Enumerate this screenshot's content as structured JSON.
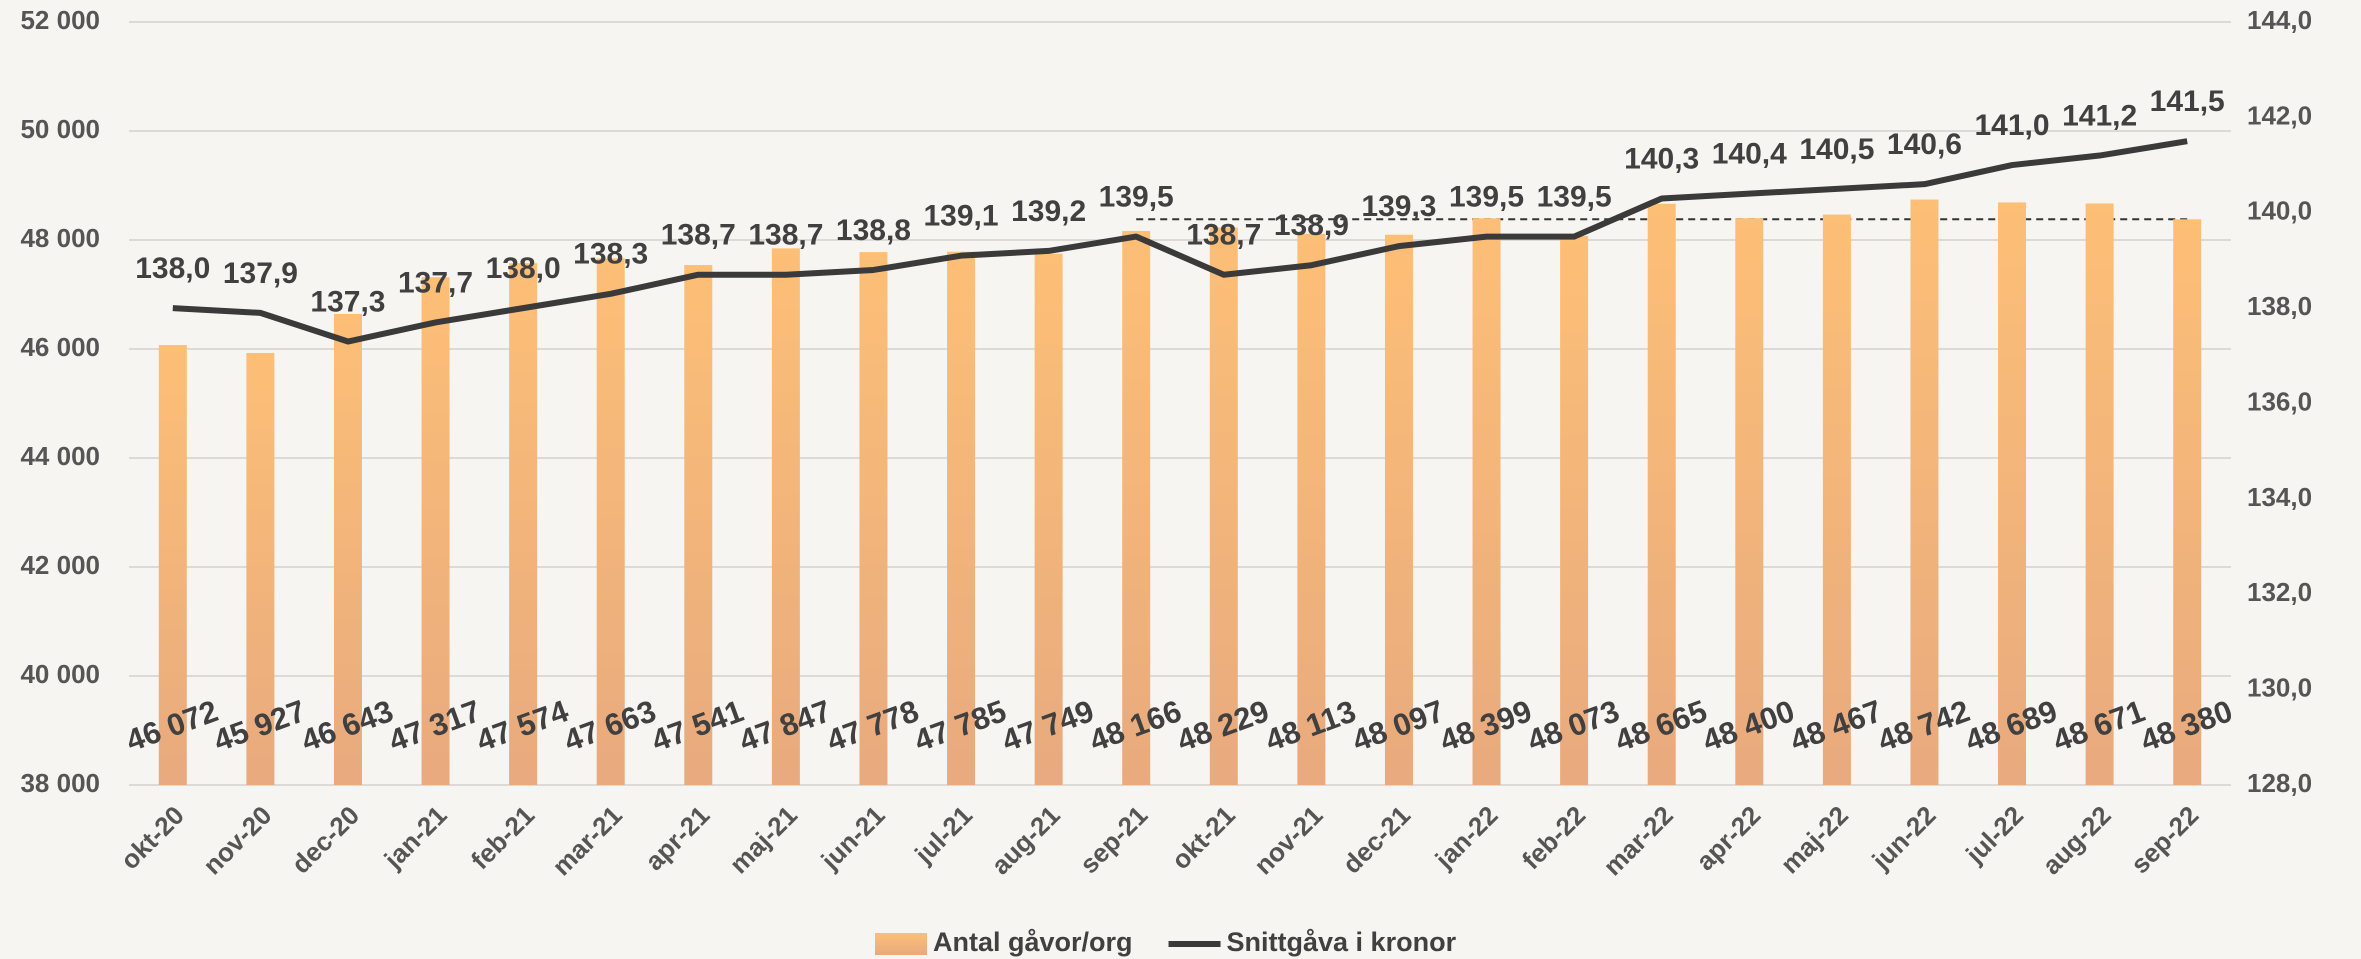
{
  "chart_data": {
    "type": "bar-line",
    "categories": [
      "okt-20",
      "nov-20",
      "dec-20",
      "jan-21",
      "feb-21",
      "mar-21",
      "apr-21",
      "maj-21",
      "jun-21",
      "jul-21",
      "aug-21",
      "sep-21",
      "okt-21",
      "nov-21",
      "dec-21",
      "jan-22",
      "feb-22",
      "mar-22",
      "apr-22",
      "maj-22",
      "jun-22",
      "jul-22",
      "aug-22",
      "sep-22"
    ],
    "series": [
      {
        "name": "Antal gåvor/org",
        "type": "bar",
        "color": "#fbbd78",
        "values": [
          46072,
          45927,
          46643,
          47317,
          47574,
          47663,
          47541,
          47847,
          47778,
          47785,
          47749,
          48166,
          48229,
          48113,
          48097,
          48399,
          48073,
          48665,
          48400,
          48467,
          48742,
          48689,
          48671,
          48380
        ],
        "value_labels": [
          "46 072",
          "45 927",
          "46 643",
          "47 317",
          "47 574",
          "47 663",
          "47 541",
          "47 847",
          "47 778",
          "47 785",
          "47 749",
          "48 166",
          "48 229",
          "48 113",
          "48 097",
          "48 399",
          "48 073",
          "48 665",
          "48 400",
          "48 467",
          "48 742",
          "48 689",
          "48 671",
          "48 380"
        ]
      },
      {
        "name": "Snittgåva i kronor",
        "type": "line",
        "axis": "y2",
        "color": "#3a3a3a",
        "values": [
          138.0,
          137.9,
          137.3,
          137.7,
          138.0,
          138.3,
          138.7,
          138.7,
          138.8,
          139.1,
          139.2,
          139.5,
          138.7,
          138.9,
          139.3,
          139.5,
          139.5,
          140.3,
          140.4,
          140.5,
          140.6,
          141.0,
          141.2,
          141.5
        ],
        "value_labels": [
          "138,0",
          "137,9",
          "137,3",
          "137,7",
          "138,0",
          "138,3",
          "138,7",
          "138,7",
          "138,8",
          "139,1",
          "139,2",
          "139,5",
          "138,7",
          "138,9",
          "139,3",
          "139,5",
          "139,5",
          "140,3",
          "140,4",
          "140,5",
          "140,6",
          "141,0",
          "141,2",
          "141,5"
        ]
      }
    ],
    "reference_line": {
      "value": 48380,
      "x": [
        "sep-21",
        "sep-22"
      ]
    },
    "ylim": [
      38000,
      52000
    ],
    "yticks": [
      {
        "value": 38000,
        "label": "38 000"
      },
      {
        "value": 40000,
        "label": "40 000"
      },
      {
        "value": 42000,
        "label": "42 000"
      },
      {
        "value": 44000,
        "label": "44 000"
      },
      {
        "value": 46000,
        "label": "46 000"
      },
      {
        "value": 48000,
        "label": "48 000"
      },
      {
        "value": 50000,
        "label": "50 000"
      },
      {
        "value": 52000,
        "label": "52 000"
      }
    ],
    "y2lim": [
      128,
      144
    ],
    "y2ticks": [
      {
        "value": 128,
        "label": "128,0"
      },
      {
        "value": 130,
        "label": "130,0"
      },
      {
        "value": 132,
        "label": "132,0"
      },
      {
        "value": 134,
        "label": "134,0"
      },
      {
        "value": 136,
        "label": "136,0"
      },
      {
        "value": 138,
        "label": "138,0"
      },
      {
        "value": 140,
        "label": "140,0"
      },
      {
        "value": 142,
        "label": "142,0"
      },
      {
        "value": 144,
        "label": "144,0"
      }
    ],
    "grid": true,
    "legend": "bottom"
  }
}
